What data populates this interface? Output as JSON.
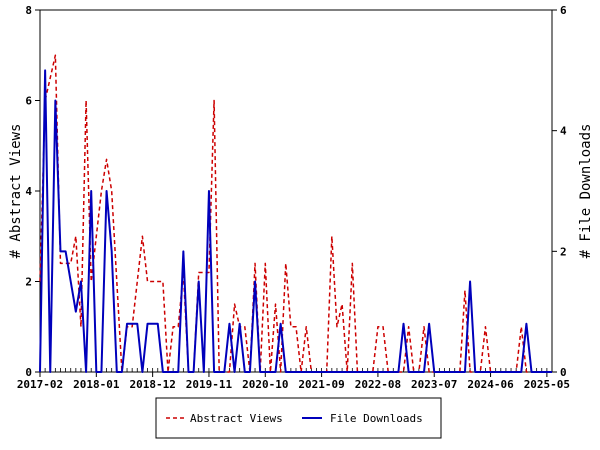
{
  "chart_data": {
    "type": "line",
    "x_tick_labels": [
      "2017-02",
      "2018-01",
      "2018-12",
      "2019-11",
      "2020-10",
      "2021-09",
      "2022-08",
      "2023-07",
      "2024-06",
      "2025-05"
    ],
    "left_axis": {
      "label": "# Abstract Views",
      "range": [
        0,
        8
      ],
      "ticks": [
        "0",
        "2",
        "4",
        "6",
        "8"
      ]
    },
    "right_axis": {
      "label": "# File Downloads",
      "range": [
        0,
        6
      ],
      "ticks": [
        "0",
        "2",
        "4",
        "6"
      ]
    },
    "months": 101,
    "series": [
      {
        "name": "Abstract Views",
        "axis": "left",
        "color": "#cc0000",
        "style": "dashed",
        "values": [
          2,
          6,
          6.5,
          7,
          2.4,
          2.4,
          2.4,
          3,
          1,
          6,
          2,
          3,
          4,
          4.7,
          4,
          2,
          0,
          1,
          1,
          2,
          3,
          2,
          2,
          2,
          2,
          0,
          1,
          1,
          2.2,
          0,
          0,
          2.2,
          2.2,
          2.2,
          6,
          0,
          0,
          0,
          1.5,
          1,
          1,
          0,
          2.4,
          0,
          2.4,
          0,
          1.5,
          0,
          2.4,
          1,
          1,
          0,
          1,
          0,
          0,
          0,
          0,
          3,
          1,
          1.5,
          0,
          2.4,
          0,
          0,
          0,
          0,
          1,
          1,
          0,
          0,
          0,
          0,
          1,
          0,
          0,
          1,
          0,
          0,
          0,
          0,
          0,
          0,
          0,
          1.8,
          0,
          0,
          0,
          1,
          0,
          0,
          0,
          0,
          0,
          0,
          1,
          0,
          0,
          0,
          0,
          0,
          0
        ]
      },
      {
        "name": "File Downloads",
        "axis": "right",
        "color": "#0000bb",
        "style": "solid",
        "values": [
          0,
          5,
          0,
          4.5,
          2,
          2,
          1.5,
          1,
          1.5,
          0,
          3,
          0,
          0,
          3,
          2,
          0,
          0,
          0.8,
          0.8,
          0.8,
          0,
          0.8,
          0.8,
          0.8,
          0,
          0,
          0,
          0,
          2,
          0,
          0,
          1.5,
          0,
          3,
          0,
          0,
          0,
          0.8,
          0,
          0.8,
          0,
          0,
          1.5,
          0,
          0,
          0,
          0,
          0.8,
          0,
          0,
          0,
          0,
          0,
          0,
          0,
          0,
          0,
          0,
          0,
          0,
          0,
          0,
          0,
          0,
          0,
          0,
          0,
          0,
          0,
          0,
          0,
          0.8,
          0,
          0,
          0,
          0,
          0.8,
          0,
          0,
          0,
          0,
          0,
          0,
          0,
          1.5,
          0,
          0,
          0,
          0,
          0,
          0,
          0,
          0,
          0,
          0,
          0.8,
          0,
          0,
          0,
          0,
          0
        ]
      }
    ],
    "legend": {
      "placement": "bottom",
      "entries": [
        "Abstract Views",
        "File Downloads"
      ]
    },
    "grid": false
  }
}
